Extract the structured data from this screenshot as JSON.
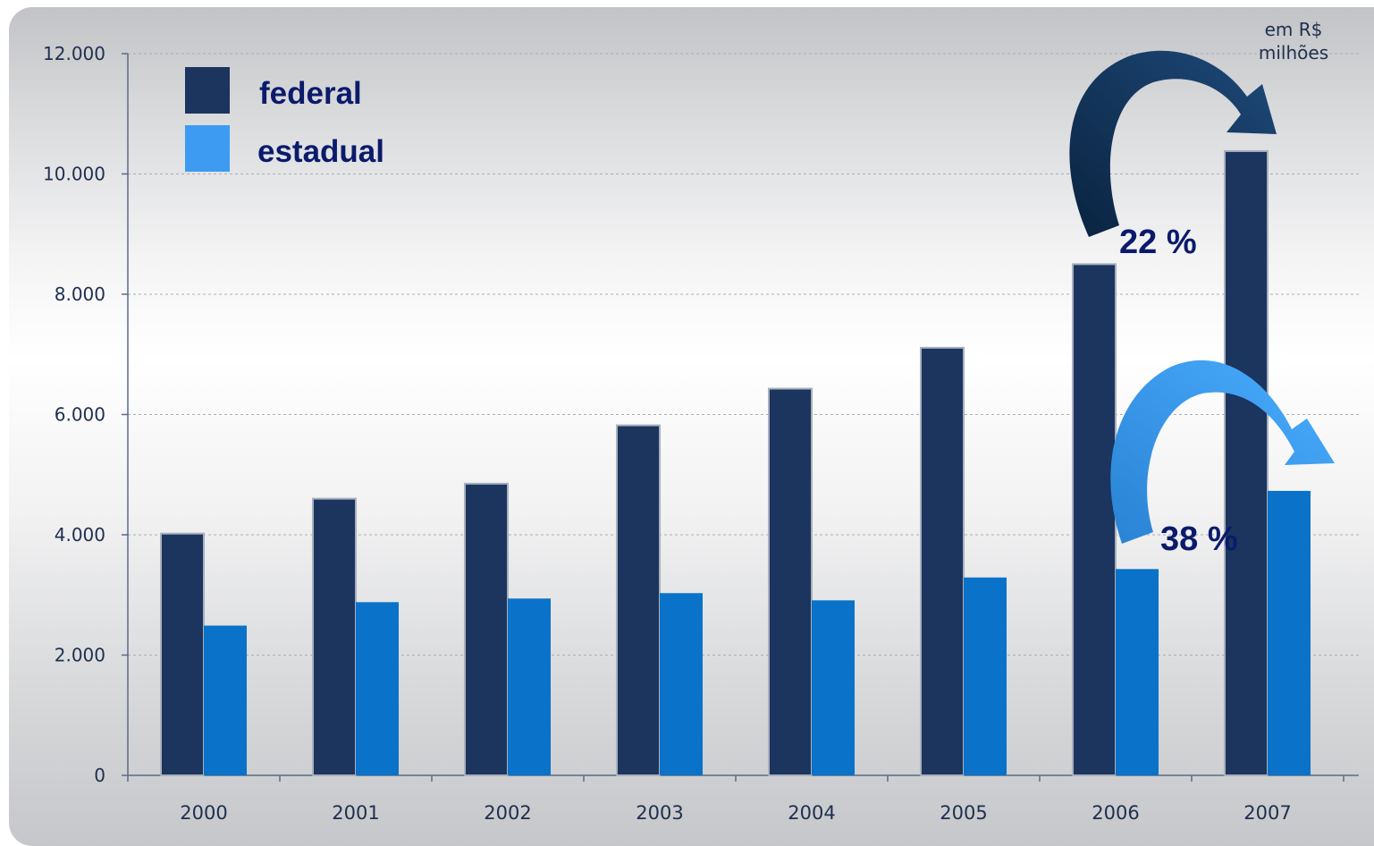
{
  "chart_data": {
    "type": "bar",
    "categories": [
      "2000",
      "2001",
      "2002",
      "2003",
      "2004",
      "2005",
      "2006",
      "2007"
    ],
    "series": [
      {
        "name": "federal",
        "values": [
          4020,
          4600,
          4850,
          5820,
          6430,
          7110,
          8500,
          10380
        ],
        "color": "#1b355f"
      },
      {
        "name": "estadual",
        "values": [
          2490,
          2880,
          2940,
          3030,
          2910,
          3290,
          3430,
          4730
        ],
        "color": "#0a72c8"
      }
    ],
    "yticks": [
      "0",
      "2.000",
      "4.000",
      "6.000",
      "8.000",
      "10.000",
      "12.000"
    ],
    "ylim": [
      0,
      12000
    ],
    "grid": true,
    "legend_position": "top-left",
    "unit_note": [
      "em R$",
      "milhões"
    ],
    "annotations": [
      {
        "text": "22 %",
        "series": "federal",
        "from": "2006",
        "to": "2007",
        "color": "#14365e"
      },
      {
        "text": "38 %",
        "series": "estadual",
        "from": "2006",
        "to": "2007",
        "color": "#3a9ef6"
      }
    ]
  }
}
